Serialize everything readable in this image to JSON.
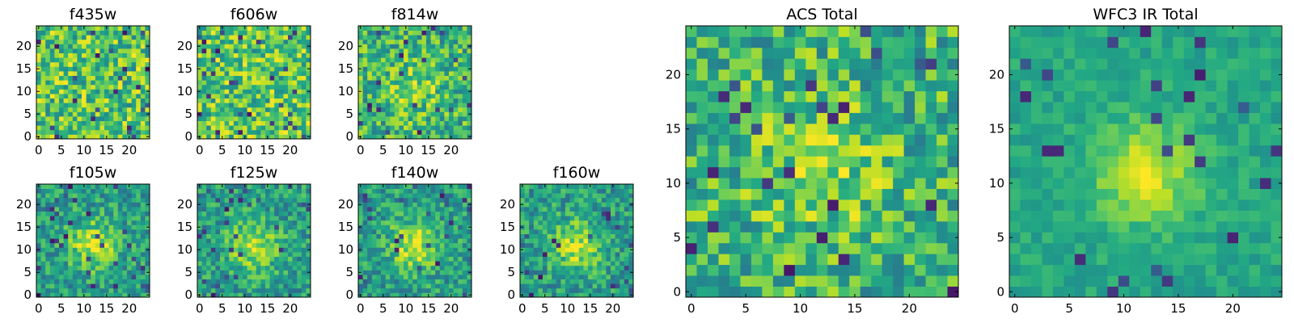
{
  "chart_data": [
    {
      "type": "heatmap",
      "title": "f435w",
      "rows": 25,
      "cols": 25,
      "xlim": [
        0,
        25
      ],
      "ylim": [
        0,
        25
      ],
      "xticks": [
        0,
        5,
        10,
        15,
        20
      ],
      "yticks": [
        0,
        5,
        10,
        15,
        20
      ],
      "colormap": "viridis",
      "pattern": "noise",
      "seed": 11
    },
    {
      "type": "heatmap",
      "title": "f606w",
      "rows": 25,
      "cols": 25,
      "xlim": [
        0,
        25
      ],
      "ylim": [
        0,
        25
      ],
      "xticks": [
        0,
        5,
        10,
        15,
        20
      ],
      "yticks": [
        0,
        5,
        10,
        15,
        20
      ],
      "colormap": "viridis",
      "pattern": "noise",
      "seed": 23
    },
    {
      "type": "heatmap",
      "title": "f814w",
      "rows": 25,
      "cols": 25,
      "xlim": [
        0,
        25
      ],
      "ylim": [
        0,
        25
      ],
      "xticks": [
        0,
        5,
        10,
        15,
        20
      ],
      "yticks": [
        0,
        5,
        10,
        15,
        20
      ],
      "colormap": "viridis",
      "pattern": "noise_center",
      "seed": 37
    },
    {
      "type": "heatmap",
      "title": "f105w",
      "rows": 25,
      "cols": 25,
      "xlim": [
        0,
        25
      ],
      "ylim": [
        0,
        25
      ],
      "xticks": [
        0,
        5,
        10,
        15,
        20
      ],
      "yticks": [
        0,
        5,
        10,
        15,
        20
      ],
      "colormap": "viridis",
      "pattern": "blob",
      "seed": 41
    },
    {
      "type": "heatmap",
      "title": "f125w",
      "rows": 25,
      "cols": 25,
      "xlim": [
        0,
        25
      ],
      "ylim": [
        0,
        25
      ],
      "xticks": [
        0,
        5,
        10,
        15,
        20
      ],
      "yticks": [
        0,
        5,
        10,
        15,
        20
      ],
      "colormap": "viridis",
      "pattern": "blob",
      "seed": 53
    },
    {
      "type": "heatmap",
      "title": "f140w",
      "rows": 25,
      "cols": 25,
      "xlim": [
        0,
        25
      ],
      "ylim": [
        0,
        25
      ],
      "xticks": [
        0,
        5,
        10,
        15,
        20
      ],
      "yticks": [
        0,
        5,
        10,
        15,
        20
      ],
      "colormap": "viridis",
      "pattern": "blob",
      "seed": 67
    },
    {
      "type": "heatmap",
      "title": "f160w",
      "rows": 25,
      "cols": 25,
      "xlim": [
        0,
        25
      ],
      "ylim": [
        0,
        25
      ],
      "xticks": [
        0,
        5,
        10,
        15,
        20
      ],
      "yticks": [
        0,
        5,
        10,
        15,
        20
      ],
      "colormap": "viridis",
      "pattern": "blob",
      "seed": 79
    },
    {
      "type": "heatmap",
      "title": "ACS Total",
      "rows": 25,
      "cols": 25,
      "xlim": [
        0,
        25
      ],
      "ylim": [
        0,
        25
      ],
      "xticks": [
        0,
        5,
        10,
        15,
        20
      ],
      "yticks": [
        0,
        5,
        10,
        15,
        20
      ],
      "colormap": "viridis",
      "pattern": "noise_center",
      "seed": 97
    },
    {
      "type": "heatmap",
      "title": "WFC3 IR Total",
      "rows": 25,
      "cols": 25,
      "xlim": [
        0,
        25
      ],
      "ylim": [
        0,
        25
      ],
      "xticks": [
        0,
        5,
        10,
        15,
        20
      ],
      "yticks": [
        0,
        5,
        10,
        15,
        20
      ],
      "colormap": "viridis",
      "pattern": "smooth_blob",
      "seed": 113
    }
  ]
}
